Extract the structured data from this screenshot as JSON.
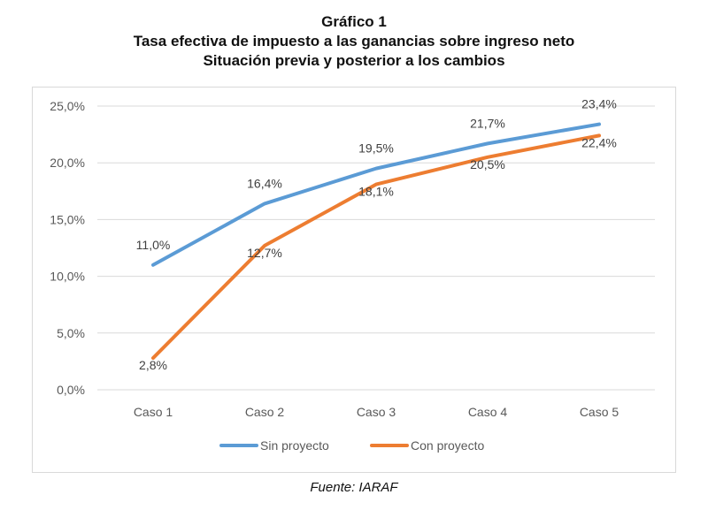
{
  "header": {
    "title_line1": "Gráfico 1",
    "title_line2": "Tasa efectiva de impuesto a las ganancias sobre ingreso neto",
    "title_line3": "Situación previa y posterior a los cambios"
  },
  "footer": {
    "source": "Fuente: IARAF"
  },
  "chart_data": {
    "type": "line",
    "title": "Tasa efectiva de impuesto a las ganancias sobre ingreso neto",
    "subtitle": "Situación previa y posterior a los cambios",
    "categories": [
      "Caso 1",
      "Caso 2",
      "Caso 3",
      "Caso 4",
      "Caso 5"
    ],
    "xlabel": "",
    "ylabel": "",
    "ylim": [
      0,
      25
    ],
    "yticks": [
      0,
      5,
      10,
      15,
      20,
      25
    ],
    "ytick_labels": [
      "0,0%",
      "5,0%",
      "10,0%",
      "15,0%",
      "20,0%",
      "25,0%"
    ],
    "grid": true,
    "legend_position": "bottom",
    "series": [
      {
        "name": "Sin proyecto",
        "color": "#5B9BD5",
        "values": [
          11.0,
          16.4,
          19.5,
          21.7,
          23.4
        ],
        "labels": [
          "11,0%",
          "16,4%",
          "19,5%",
          "21,7%",
          "23,4%"
        ]
      },
      {
        "name": "Con proyecto",
        "color": "#ED7D31",
        "values": [
          2.8,
          12.7,
          18.1,
          20.5,
          22.4
        ],
        "labels": [
          "2,8%",
          "12,7%",
          "18,1%",
          "20,5%",
          "22,4%"
        ]
      }
    ]
  }
}
